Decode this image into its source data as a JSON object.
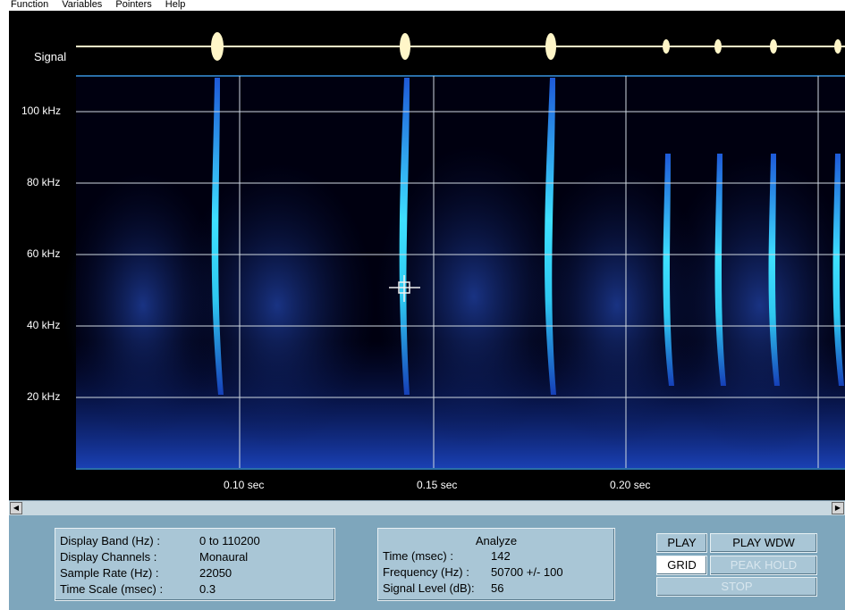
{
  "menu": [
    "Function",
    "Variables",
    "Pointers",
    "Help"
  ],
  "signal_label": "Signal",
  "y_labels": [
    "100 kHz",
    "80 kHz",
    "60 kHz",
    "40 kHz",
    "20 kHz"
  ],
  "x_labels": [
    "0.10 sec",
    "0.15 sec",
    "0.20 sec"
  ],
  "display_info": {
    "band_label": "Display Band (Hz) :",
    "band_value": "0 to 110200",
    "channels_label": "Display Channels :",
    "channels_value": "Monaural",
    "rate_label": "Sample Rate (Hz) :",
    "rate_value": "22050",
    "scale_label": "Time Scale (msec) :",
    "scale_value": "0.3"
  },
  "analyze": {
    "title": "Analyze",
    "time_label": "Time (msec) :",
    "time_value": "142",
    "freq_label": "Frequency (Hz) :",
    "freq_value": "50700 +/- 100",
    "level_label": "Signal Level (dB):",
    "level_value": "56"
  },
  "buttons": {
    "play": "PLAY",
    "play_wdw": "PLAY WDW",
    "grid": "GRID",
    "peak_hold": "PEAK HOLD",
    "stop": "STOP"
  },
  "colors": {
    "spectrogram_bg": "#000008",
    "low_energy": "#1f4fd8",
    "high_energy": "#4ff0ff",
    "panel": "#a9c6d6"
  }
}
